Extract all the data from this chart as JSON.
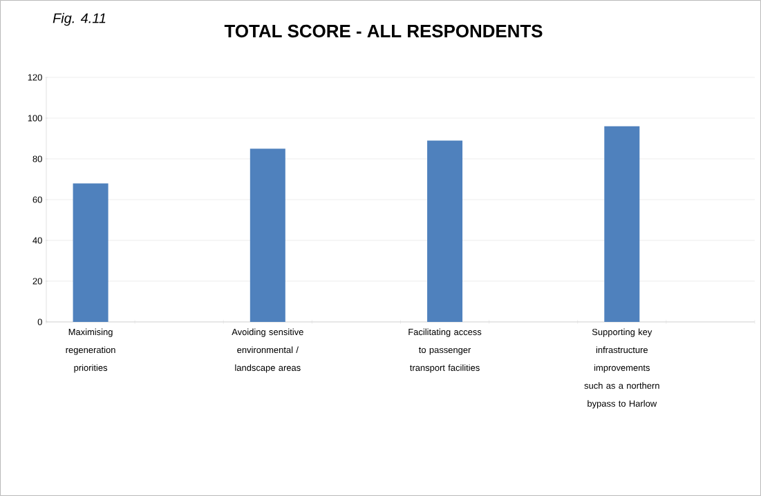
{
  "chart_data": {
    "type": "bar",
    "title": "TOTAL SCORE - ALL RESPONDENTS",
    "annotations": [
      "Fig. 4.11"
    ],
    "categories": [
      "Maximising regeneration priorities",
      null,
      "Avoiding sensitive environmental / landscape areas",
      null,
      "Facilitating access to passenger transport facilities",
      null,
      "Supporting key infrastructure improvements such as a northern bypass to Harlow",
      null
    ],
    "values": [
      68,
      null,
      85,
      null,
      89,
      null,
      96,
      null
    ],
    "color": "#4f81bd",
    "ylim": [
      0,
      120
    ],
    "yticks": [
      0,
      20,
      40,
      60,
      80,
      100,
      120
    ],
    "grid": "y"
  }
}
